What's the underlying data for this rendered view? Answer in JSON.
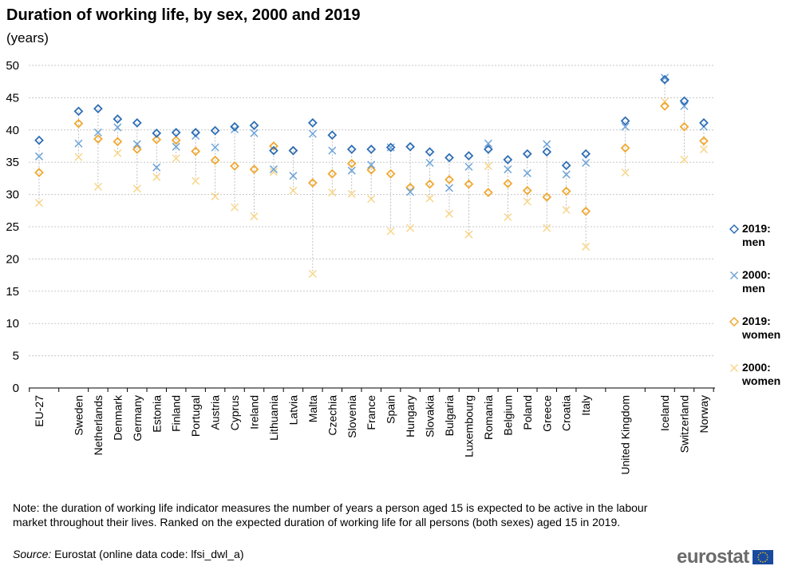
{
  "chart_data": {
    "type": "scatter",
    "title": "Duration of working life, by sex, 2000 and 2019",
    "subtitle": "(years)",
    "ylim": [
      0,
      50
    ],
    "yticks": [
      0,
      5,
      10,
      15,
      20,
      25,
      30,
      35,
      40,
      45,
      50
    ],
    "grid": true,
    "legend_position": "right",
    "categories": [
      "EU-27",
      "Sweden",
      "Netherlands",
      "Denmark",
      "Germany",
      "Estonia",
      "Finland",
      "Portugal",
      "Austria",
      "Cyprus",
      "Ireland",
      "Lithuania",
      "Latvia",
      "Malta",
      "Czechia",
      "Slovenia",
      "France",
      "Spain",
      "Hungary",
      "Slovakia",
      "Bulgaria",
      "Luxembourg",
      "Romania",
      "Belgium",
      "Poland",
      "Greece",
      "Croatia",
      "Italy",
      "United Kingdom",
      "Iceland",
      "Switzerland",
      "Norway"
    ],
    "series": [
      {
        "name": "2019: men",
        "marker": "diamond",
        "color": "#2e6eb5",
        "values": [
          38.4,
          42.9,
          43.3,
          41.7,
          41.1,
          39.5,
          39.6,
          39.6,
          39.9,
          40.5,
          40.7,
          36.8,
          36.8,
          41.1,
          39.2,
          37.0,
          37.0,
          37.3,
          37.4,
          36.6,
          35.7,
          36.0,
          37.0,
          35.4,
          36.3,
          36.6,
          34.5,
          36.3,
          41.4,
          47.8,
          44.5,
          41.1
        ]
      },
      {
        "name": "2000: men",
        "marker": "cross",
        "color": "#6ea4d8",
        "values": [
          35.9,
          37.9,
          39.6,
          40.4,
          37.8,
          34.2,
          37.4,
          39.1,
          37.3,
          40.1,
          39.5,
          33.9,
          32.9,
          39.4,
          36.8,
          33.7,
          34.6,
          37.3,
          30.4,
          34.9,
          31.0,
          34.3,
          37.9,
          33.9,
          33.3,
          37.8,
          33.1,
          34.9,
          40.5,
          48.1,
          43.7,
          40.5
        ]
      },
      {
        "name": "2019: women",
        "marker": "diamond",
        "color": "#f0a830",
        "values": [
          33.4,
          41.0,
          38.6,
          38.2,
          37.0,
          38.5,
          38.4,
          36.7,
          35.3,
          34.4,
          33.9,
          37.5,
          36.8,
          31.8,
          33.2,
          34.8,
          33.8,
          33.2,
          31.1,
          31.6,
          32.3,
          31.6,
          30.3,
          31.7,
          30.6,
          29.6,
          30.5,
          27.4,
          37.2,
          43.7,
          40.5,
          38.3
        ]
      },
      {
        "name": "2000: women",
        "marker": "cross",
        "color": "#f8d68a",
        "values": [
          28.7,
          35.8,
          31.2,
          36.4,
          30.9,
          32.7,
          35.6,
          32.1,
          29.7,
          28.0,
          26.6,
          33.5,
          30.6,
          17.7,
          30.3,
          30.1,
          29.3,
          24.3,
          24.8,
          29.4,
          27.0,
          23.8,
          34.4,
          26.5,
          28.9,
          24.8,
          27.6,
          21.9,
          33.4,
          44.4,
          35.4,
          37.0
        ]
      }
    ]
  },
  "note": "Note: the duration of working life indicator measures the number of years a person aged 15 is expected to be active in the labour market throughout their lives. Ranked on the expected duration of working life for all persons (both sexes) aged 15 in 2019.",
  "source": {
    "label": "Source:",
    "text": "Eurostat (online data code: lfsi_dwl_a)"
  },
  "logo": {
    "text": "eurostat",
    "flag_color": "#1a4aa0",
    "star_color": "#ffd200"
  }
}
